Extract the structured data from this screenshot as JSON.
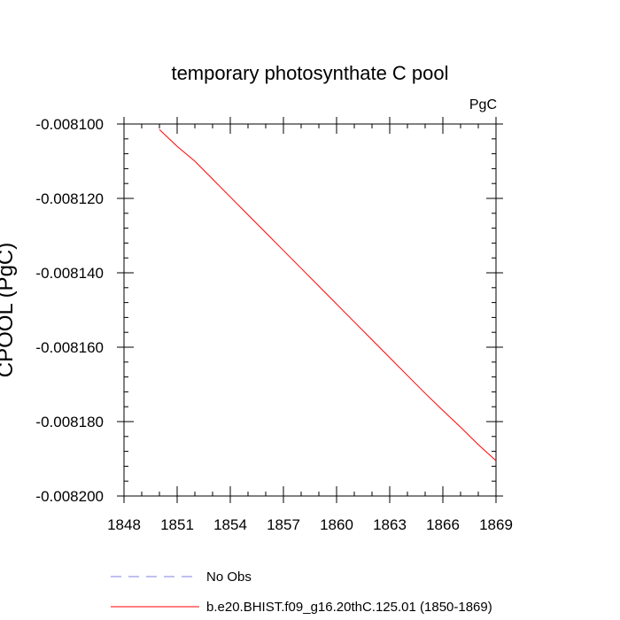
{
  "chart_data": {
    "type": "line",
    "title": "temporary photosynthate C pool",
    "units": "PgC",
    "xlabel": "",
    "ylabel": "CPOOL  (PgC)",
    "xlim": [
      1848,
      1869
    ],
    "ylim": [
      -0.0082,
      -0.0081
    ],
    "x_ticks": [
      "1848",
      "1851",
      "1854",
      "1857",
      "1860",
      "1863",
      "1866",
      "1869"
    ],
    "y_ticks": [
      "-0.008100",
      "-0.008120",
      "-0.008140",
      "-0.008160",
      "-0.008180",
      "-0.008200"
    ],
    "grid": false,
    "legend": "bottom",
    "series": [
      {
        "name": "No Obs",
        "color": "#8080e0",
        "dash": "dashed",
        "x": [],
        "y": []
      },
      {
        "name": "b.e20.BHIST.f09_g16.20thC.125.01 (1850-1869)",
        "color": "#ff0000",
        "dash": "solid",
        "x": [
          1850,
          1851,
          1852,
          1853,
          1854,
          1855,
          1856,
          1857,
          1858,
          1859,
          1860,
          1861,
          1862,
          1863,
          1864,
          1865,
          1866,
          1867,
          1868,
          1869
        ],
        "y": [
          -0.0081015,
          -0.008106,
          -0.00811,
          -0.0081148,
          -0.0081196,
          -0.0081244,
          -0.0081292,
          -0.008134,
          -0.0081388,
          -0.0081436,
          -0.0081484,
          -0.0081532,
          -0.008158,
          -0.0081628,
          -0.0081676,
          -0.0081724,
          -0.008177,
          -0.0081815,
          -0.0081862,
          -0.0081905
        ]
      }
    ]
  }
}
